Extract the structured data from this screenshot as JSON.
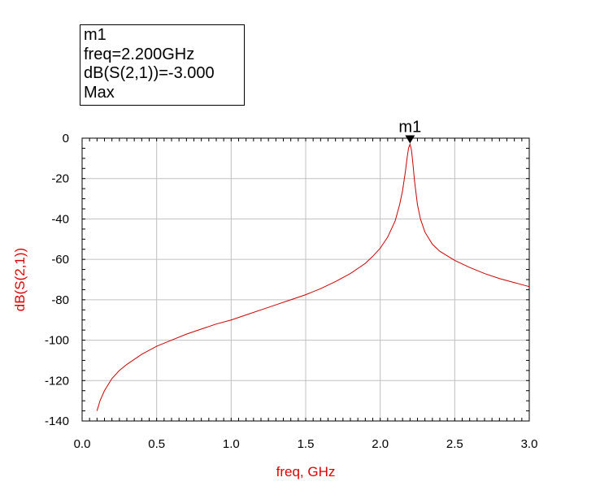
{
  "marker_box": {
    "name": "m1",
    "freq": "freq=2.200GHz",
    "value": "dB(S(2,1))=-3.000",
    "type": "Max"
  },
  "colors": {
    "trace": "#cc0000",
    "axis_label": "#dd0000",
    "grid": "#c0c0c0",
    "frame": "#000000"
  },
  "chart_data": {
    "type": "line",
    "xlabel": "freq, GHz",
    "ylabel": "dB(S(2,1))",
    "xlim": [
      0.0,
      3.0
    ],
    "ylim": [
      -140,
      0
    ],
    "xticks": [
      "0.0",
      "0.5",
      "1.0",
      "1.5",
      "2.0",
      "2.5",
      "3.0"
    ],
    "yticks": [
      "0",
      "-20",
      "-40",
      "-60",
      "-80",
      "-100",
      "-120",
      "-140"
    ],
    "grid": true,
    "marker": {
      "label": "m1",
      "x": 2.2,
      "y": -3.0
    },
    "series": [
      {
        "x": [
          0.1,
          0.12,
          0.15,
          0.2,
          0.25,
          0.3,
          0.35,
          0.4,
          0.5,
          0.6,
          0.7,
          0.8,
          0.9,
          1.0,
          1.1,
          1.2,
          1.3,
          1.4,
          1.5,
          1.6,
          1.7,
          1.8,
          1.9,
          1.95,
          2.0,
          2.05,
          2.1,
          2.13,
          2.15,
          2.17,
          2.18,
          2.19,
          2.2,
          2.21,
          2.22,
          2.23,
          2.25,
          2.27,
          2.3,
          2.35,
          2.4,
          2.5,
          2.6,
          2.7,
          2.8,
          2.9,
          3.0
        ],
        "y": [
          -135,
          -130,
          -125,
          -119,
          -115,
          -112,
          -109.5,
          -107,
          -103,
          -100,
          -97,
          -94.5,
          -92,
          -90,
          -87.5,
          -85,
          -82.5,
          -80,
          -77.5,
          -74.5,
          -71,
          -67,
          -62,
          -58.5,
          -54.5,
          -49,
          -41,
          -33,
          -26,
          -16,
          -10,
          -5,
          -3.0,
          -6,
          -13,
          -21,
          -33,
          -40,
          -46.5,
          -52.5,
          -56,
          -60.5,
          -64,
          -67,
          -69.5,
          -71.5,
          -73.5
        ]
      }
    ]
  }
}
